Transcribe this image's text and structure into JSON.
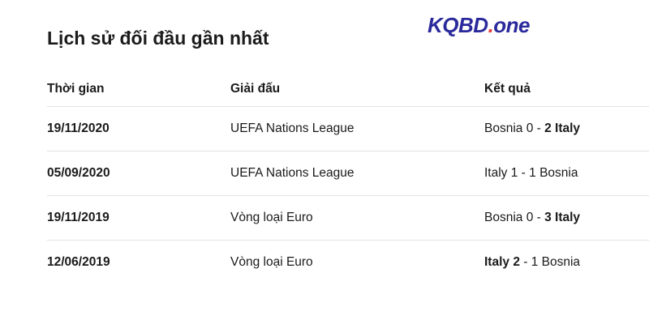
{
  "title": "Lịch sử đối đầu gần nhất",
  "logo": {
    "main": "KQBD",
    "dot": ".",
    "suffix": "one",
    "colors": {
      "main": "#2b2a9c",
      "dot": "#e63b3b"
    }
  },
  "columns": [
    "Thời gian",
    "Giải đấu",
    "Kết quả"
  ],
  "rows": [
    {
      "date": "19/11/2020",
      "league": "UEFA Nations League",
      "result": {
        "left": "Bosnia 0",
        "sep": " - ",
        "right": "2 Italy",
        "bold": "right"
      }
    },
    {
      "date": "05/09/2020",
      "league": "UEFA Nations League",
      "result": {
        "left": "Italy 1",
        "sep": " - ",
        "right": "1 Bosnia",
        "bold": "none"
      }
    },
    {
      "date": "19/11/2019",
      "league": "Vòng loại Euro",
      "result": {
        "left": "Bosnia 0",
        "sep": " - ",
        "right": "3 Italy",
        "bold": "right"
      }
    },
    {
      "date": "12/06/2019",
      "league": "Vòng loại Euro",
      "result": {
        "left": "Italy 2",
        "sep": " - ",
        "right": "1 Bosnia",
        "bold": "left"
      }
    }
  ]
}
